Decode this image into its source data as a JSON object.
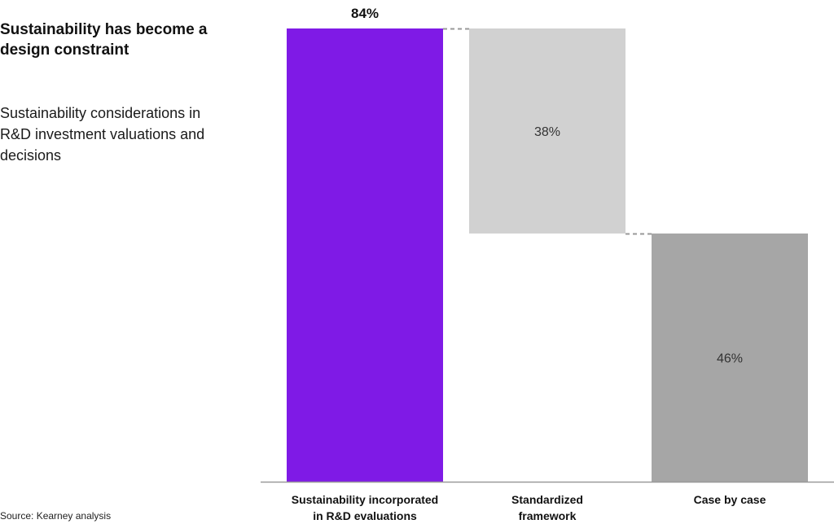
{
  "title": "Sustainability has become a design constraint",
  "subtitle": "Sustainability considerations in R&D investment valuations and decisions",
  "source": "Source: Kearney analysis",
  "colors": {
    "accent": "#7f1ae6",
    "light_gray": "#d1d1d1",
    "dark_gray": "#a6a6a6",
    "axis": "#999999"
  },
  "chart_data": {
    "type": "bar",
    "subtype": "waterfall",
    "ylim": [
      0,
      84
    ],
    "bars": [
      {
        "category_lines": [
          "Sustainability incorporated",
          "in R&D evaluations"
        ],
        "value": 84,
        "base": 0,
        "label": "84%",
        "color": "#7f1ae6",
        "label_position": "above"
      },
      {
        "category_lines": [
          "Standardized",
          "framework"
        ],
        "value": 38,
        "base": 46,
        "label": "38%",
        "color": "#d1d1d1",
        "label_position": "inside"
      },
      {
        "category_lines": [
          "Case by case"
        ],
        "value": 46,
        "base": 0,
        "label": "46%",
        "color": "#a6a6a6",
        "label_position": "inside"
      }
    ],
    "connectors": "dashed",
    "grid": false,
    "legend": "none"
  }
}
